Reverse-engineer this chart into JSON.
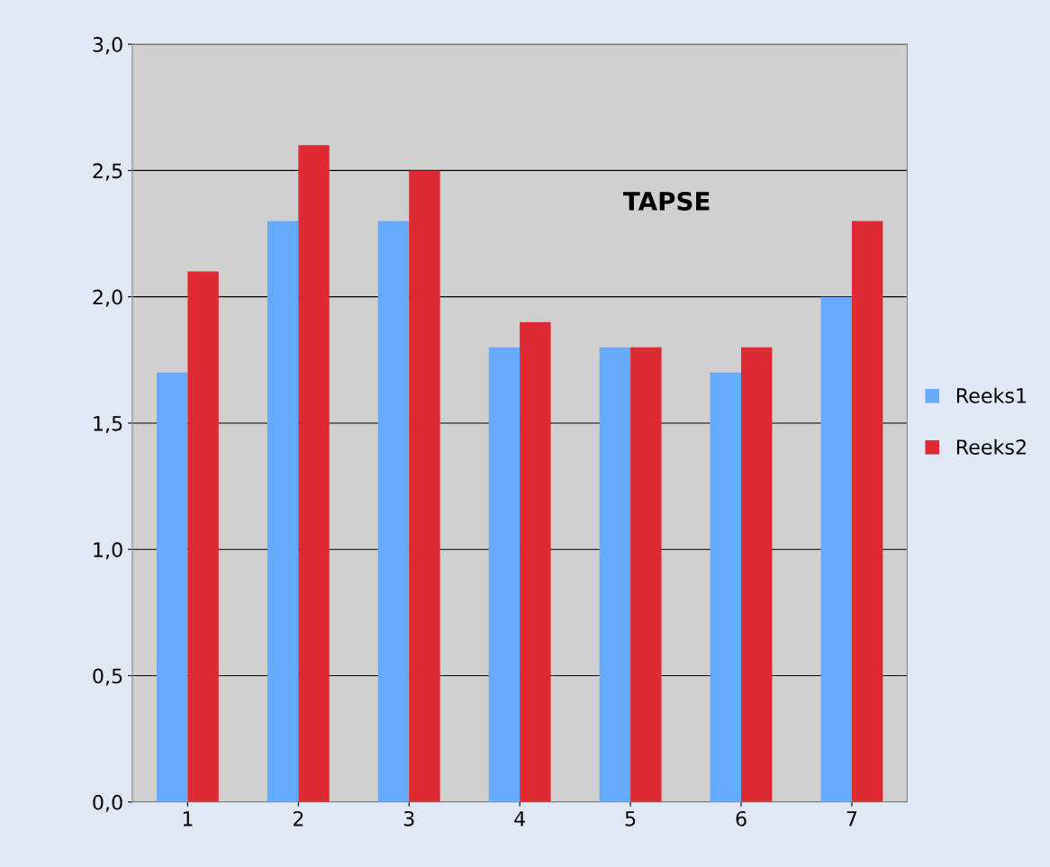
{
  "chart_data": {
    "type": "bar",
    "title": "TAPSE",
    "categories": [
      "1",
      "2",
      "3",
      "4",
      "5",
      "6",
      "7"
    ],
    "series": [
      {
        "name": "Reeks1",
        "color": "#66aaff",
        "values": [
          1.7,
          2.3,
          2.3,
          1.8,
          1.8,
          1.7,
          2.0
        ]
      },
      {
        "name": "Reeks2",
        "color": "#dd2a33",
        "values": [
          2.1,
          2.6,
          2.5,
          1.9,
          1.8,
          1.8,
          2.3
        ]
      }
    ],
    "ylim": [
      0,
      3
    ],
    "yticks": [
      {
        "value": 0,
        "label": "0,0"
      },
      {
        "value": 0.5,
        "label": "0,5"
      },
      {
        "value": 1,
        "label": "1,0"
      },
      {
        "value": 1.5,
        "label": "1,5"
      },
      {
        "value": 2,
        "label": "2,0"
      },
      {
        "value": 2.5,
        "label": "2,5"
      },
      {
        "value": 3,
        "label": "3,0"
      }
    ],
    "grid": "y",
    "legend": "right"
  }
}
